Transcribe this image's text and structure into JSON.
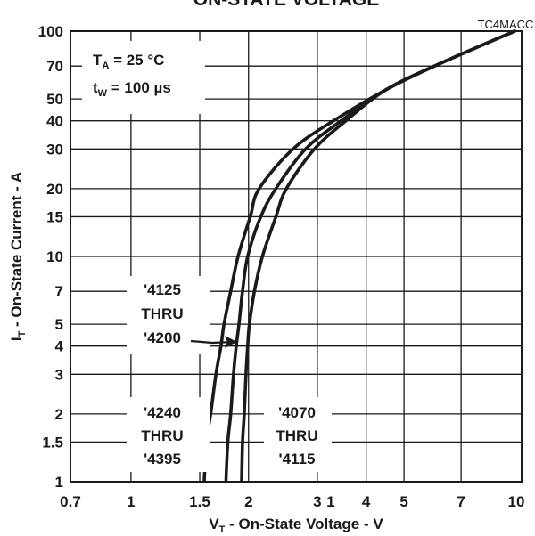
{
  "chart_data": {
    "type": "line",
    "title": "ON-STATE VOLTAGE",
    "figure_code": "TC4MACC",
    "xlabel": "V",
    "xlabel_sub": "T",
    "xlabel_rest": " - On-State Voltage - V",
    "ylabel": "I",
    "ylabel_sub": "T",
    "ylabel_rest": " - On-State Current - A",
    "x_scale": "log",
    "y_scale": "log",
    "xlim": [
      0.7,
      10
    ],
    "ylim": [
      1,
      100
    ],
    "x_ticks": [
      {
        "value": 0.7,
        "label": "0.7"
      },
      {
        "value": 1,
        "label": "1"
      },
      {
        "value": 1.5,
        "label": "1.5"
      },
      {
        "value": 2,
        "label": "2"
      },
      {
        "value": 3,
        "label": "3"
      },
      {
        "value": 4,
        "label": "4"
      },
      {
        "value": 5,
        "label": "5"
      },
      {
        "value": 7,
        "label": "7"
      },
      {
        "value": 10,
        "label": "10"
      }
    ],
    "x_tick_extra": "1",
    "y_ticks": [
      {
        "value": 1,
        "label": "1"
      },
      {
        "value": 1.5,
        "label": "1.5"
      },
      {
        "value": 2,
        "label": "2"
      },
      {
        "value": 3,
        "label": "3"
      },
      {
        "value": 4,
        "label": "4"
      },
      {
        "value": 5,
        "label": "5"
      },
      {
        "value": 7,
        "label": "7"
      },
      {
        "value": 10,
        "label": "10"
      },
      {
        "value": 15,
        "label": "15"
      },
      {
        "value": 20,
        "label": "20"
      },
      {
        "value": 30,
        "label": "30"
      },
      {
        "value": 40,
        "label": "40"
      },
      {
        "value": 50,
        "label": "50"
      },
      {
        "value": 70,
        "label": "70"
      },
      {
        "value": 100,
        "label": "100"
      }
    ],
    "grid": true,
    "conditions": {
      "line1_main": "T",
      "line1_sub": "A",
      "line1_rest": " = 25 °C",
      "line2_main": "t",
      "line2_sub": "W",
      "line2_rest": " = 100 µs"
    },
    "series": [
      {
        "name": "'4240 THRU '4395",
        "points": [
          [
            1.54,
            1
          ],
          [
            1.56,
            1.5
          ],
          [
            1.6,
            2
          ],
          [
            1.65,
            3
          ],
          [
            1.7,
            4
          ],
          [
            1.73,
            5
          ],
          [
            1.8,
            7
          ],
          [
            1.88,
            10
          ],
          [
            2.02,
            15
          ],
          [
            2.13,
            20
          ],
          [
            2.6,
            30
          ],
          [
            3.3,
            40
          ],
          [
            4.5,
            55
          ],
          [
            6.2,
            72
          ],
          [
            9.6,
            100
          ]
        ]
      },
      {
        "name": "'4125 THRU '4200",
        "points": [
          [
            1.75,
            1
          ],
          [
            1.77,
            1.5
          ],
          [
            1.8,
            2
          ],
          [
            1.83,
            3
          ],
          [
            1.86,
            4
          ],
          [
            1.89,
            5
          ],
          [
            1.93,
            7
          ],
          [
            1.99,
            10
          ],
          [
            2.15,
            15
          ],
          [
            2.35,
            20
          ],
          [
            2.8,
            30
          ],
          [
            3.45,
            40
          ],
          [
            4.5,
            55
          ],
          [
            6.2,
            72
          ],
          [
            9.6,
            100
          ]
        ]
      },
      {
        "name": "'4070 THRU '4115",
        "points": [
          [
            1.92,
            1
          ],
          [
            1.93,
            1.5
          ],
          [
            1.95,
            2
          ],
          [
            1.97,
            3
          ],
          [
            1.99,
            4
          ],
          [
            2.01,
            5
          ],
          [
            2.07,
            7
          ],
          [
            2.17,
            10
          ],
          [
            2.35,
            15
          ],
          [
            2.5,
            20
          ],
          [
            2.95,
            30
          ],
          [
            3.55,
            40
          ],
          [
            4.5,
            55
          ],
          [
            6.2,
            72
          ],
          [
            9.6,
            100
          ]
        ]
      }
    ],
    "annotations": [
      {
        "lines": [
          "'4125",
          "THRU",
          "'4200"
        ],
        "has_arrow": true
      },
      {
        "lines": [
          "'4240",
          "THRU",
          "'4395"
        ],
        "has_arrow": false
      },
      {
        "lines": [
          "'4070",
          "THRU",
          "'4115"
        ],
        "has_arrow": false
      }
    ]
  }
}
